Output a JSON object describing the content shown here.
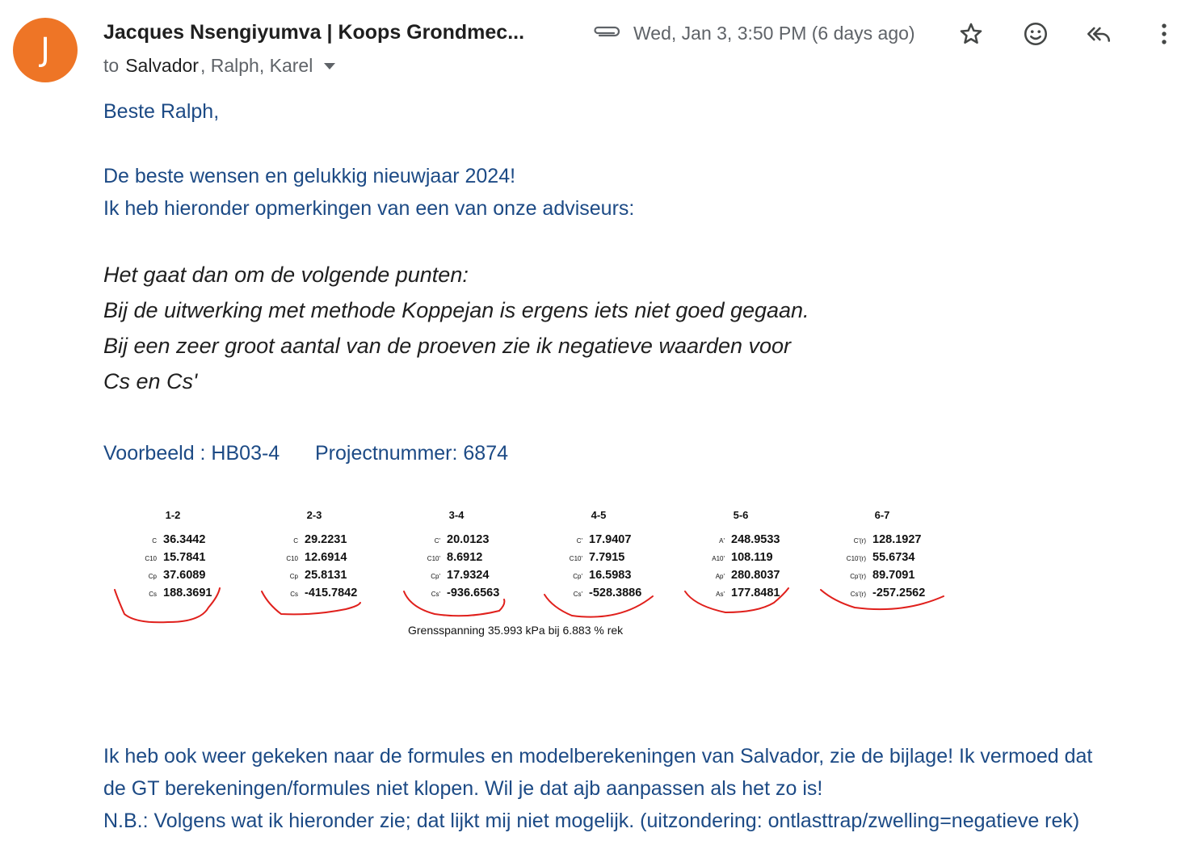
{
  "header": {
    "avatar_letter": "J",
    "avatar_color": "#ee7526",
    "sender": "Jacques Nsengiyumva | Koops Grondmec...",
    "date": "Wed, Jan 3, 3:50 PM (6 days ago)",
    "icons": [
      "attachment-icon",
      "star-icon",
      "emoji-icon",
      "reply-all-icon",
      "more-vert-icon"
    ]
  },
  "recipients": {
    "to_label": "to",
    "first": "Salvador",
    "rest": ", Ralph, Karel"
  },
  "body": {
    "greeting": "Beste Ralph,",
    "line1": "De beste wensen en gelukkig nieuwjaar 2024!",
    "line2": "Ik heb hieronder opmerkingen van een van onze adviseurs:",
    "quote1": "Het gaat dan om de volgende punten:",
    "quote2": "Bij de uitwerking met methode Koppejan is ergens iets niet goed gegaan.",
    "quote3": "Bij een zeer groot aantal van de proeven zie ik negatieve waarden voor",
    "quote4": "Cs en Cs'",
    "example_label": "Voorbeeld : HB03-4",
    "project_label": "Projectnummer: 6874",
    "para1": "Ik heb ook weer gekeken naar de formules en modelberekeningen van Salvador, zie de bijlage! Ik vermoed dat",
    "para2": "de GT berekeningen/formules niet klopen. Wil je dat ajb aanpassen als het zo is!",
    "para3": "N.B.: Volgens wat ik hieronder zie; dat lijkt mij niet mogelijk. (uitzondering: ontlasttrap/zwelling=negatieve rek)"
  },
  "figure": {
    "columns": [
      {
        "head": "1-2",
        "rows": [
          {
            "l": "C",
            "v": "36.3442"
          },
          {
            "l": "C10",
            "v": "15.7841"
          },
          {
            "l": "Cp",
            "v": "37.6089"
          },
          {
            "l": "Cs",
            "v": "188.3691"
          }
        ]
      },
      {
        "head": "2-3",
        "rows": [
          {
            "l": "C",
            "v": "29.2231"
          },
          {
            "l": "C10",
            "v": "12.6914"
          },
          {
            "l": "Cp",
            "v": "25.8131"
          },
          {
            "l": "Cs",
            "v": "-415.7842"
          }
        ]
      },
      {
        "head": "3-4",
        "rows": [
          {
            "l": "C'",
            "v": "20.0123"
          },
          {
            "l": "C10'",
            "v": "8.6912"
          },
          {
            "l": "Cp'",
            "v": "17.9324"
          },
          {
            "l": "Cs'",
            "v": "-936.6563"
          }
        ]
      },
      {
        "head": "4-5",
        "rows": [
          {
            "l": "C'",
            "v": "17.9407"
          },
          {
            "l": "C10'",
            "v": "7.7915"
          },
          {
            "l": "Cp'",
            "v": "16.5983"
          },
          {
            "l": "Cs'",
            "v": "-528.3886"
          }
        ]
      },
      {
        "head": "5-6",
        "rows": [
          {
            "l": "A'",
            "v": "248.9533"
          },
          {
            "l": "A10'",
            "v": "108.119"
          },
          {
            "l": "Ap'",
            "v": "280.8037"
          },
          {
            "l": "As'",
            "v": "177.8481"
          }
        ]
      },
      {
        "head": "6-7",
        "rows": [
          {
            "l": "C'(r)",
            "v": "128.1927"
          },
          {
            "l": "C10'(r)",
            "v": "55.6734"
          },
          {
            "l": "Cp'(r)",
            "v": "89.7091"
          },
          {
            "l": "Cs'(r)",
            "v": "-257.2562"
          }
        ]
      }
    ],
    "caption": "Grensspanning 35.993 kPa bij 6.883 % rek",
    "annotation_color": "#e0201c"
  }
}
